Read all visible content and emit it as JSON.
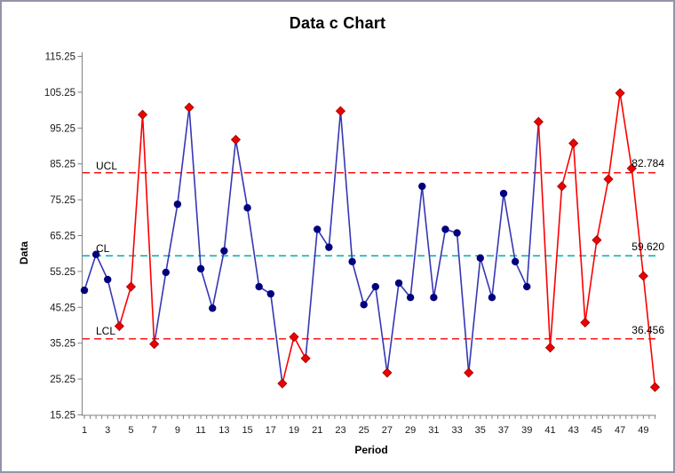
{
  "title": "Data c Chart",
  "chart_data": {
    "type": "line",
    "subtype": "c-control-chart",
    "title": "Data c Chart",
    "xlabel": "Period",
    "ylabel": "Data",
    "x": [
      1,
      2,
      3,
      4,
      5,
      6,
      7,
      8,
      9,
      10,
      11,
      12,
      13,
      14,
      15,
      16,
      17,
      18,
      19,
      20,
      21,
      22,
      23,
      24,
      25,
      26,
      27,
      28,
      29,
      30,
      31,
      32,
      33,
      34,
      35,
      36,
      37,
      38,
      39,
      40,
      41,
      42,
      43,
      44,
      45,
      46,
      47,
      48,
      49,
      50
    ],
    "values": [
      50,
      60,
      53,
      40,
      51,
      99,
      35,
      55,
      74,
      101,
      56,
      45,
      61,
      92,
      73,
      51,
      49,
      24,
      37,
      31,
      67,
      62,
      100,
      58,
      46,
      51,
      27,
      52,
      48,
      79,
      48,
      67,
      66,
      27,
      59,
      48,
      77,
      58,
      51,
      97,
      34,
      79,
      91,
      41,
      64,
      81,
      105,
      84,
      54,
      23
    ],
    "signal_periods": [
      4,
      5,
      6,
      7,
      10,
      14,
      18,
      19,
      20,
      23,
      27,
      34,
      40,
      41,
      42,
      43,
      44,
      45,
      46,
      47,
      48,
      49,
      50
    ],
    "limits": {
      "ucl": {
        "label": "UCL",
        "value": 82.784,
        "value_label": "82.784"
      },
      "cl": {
        "label": "CL",
        "value": 59.62,
        "value_label": "59.620"
      },
      "lcl": {
        "label": "LCL",
        "value": 36.456,
        "value_label": "36.456"
      }
    },
    "ylim": [
      15.25,
      115.25
    ],
    "y_ticks": [
      15.25,
      25.25,
      35.25,
      45.25,
      55.25,
      65.25,
      75.25,
      85.25,
      95.25,
      105.25,
      115.25
    ],
    "y_tick_labels": [
      "15.25",
      "25.25",
      "35.25",
      "45.25",
      "55.25",
      "65.25",
      "75.25",
      "85.25",
      "95.25",
      "105.25",
      "115.25"
    ],
    "x_tick_labels": [
      "1",
      "3",
      "5",
      "7",
      "9",
      "11",
      "13",
      "15",
      "17",
      "19",
      "21",
      "23",
      "25",
      "27",
      "29",
      "31",
      "33",
      "35",
      "37",
      "39",
      "41",
      "43",
      "45",
      "47",
      "49"
    ],
    "grid": "off",
    "legend": "none",
    "colors": {
      "in_control_line": "#3636b5",
      "in_control_marker": "#00007d",
      "signal_line": "#fb0000",
      "signal_marker": "#ee0000",
      "signal_marker_edge": "#990000",
      "center_line": "#00adae",
      "limit_line": "#fb0000",
      "axis": "#808080",
      "text": "#1a1a1a",
      "window_border": "#9394a8"
    }
  }
}
